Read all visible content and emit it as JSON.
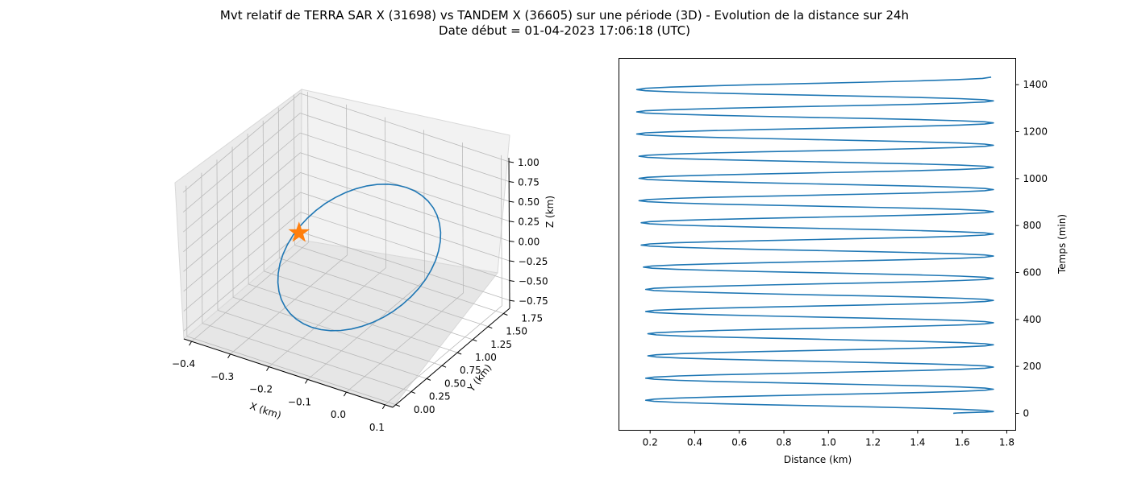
{
  "title_line1": "Mvt relatif de TERRA SAR X (31698) vs TANDEM X (36605) sur une période (3D) - Evolution de la distance sur 24h",
  "title_line2": "Date début = 01-04-2023 17:06:18 (UTC)",
  "colors": {
    "series": "#1f77b4",
    "marker": "#ff7f0e",
    "pane": "#f2f2f2",
    "grid": "#b0b0b0"
  },
  "chart_data": [
    {
      "type": "line3d",
      "xlabel": "X (km)",
      "ylabel": "Y (km)",
      "zlabel": "Z (km)",
      "xticks": [
        "−0.4",
        "−0.3",
        "−0.2",
        "−0.1",
        "0.0",
        "0.1"
      ],
      "yticks": [
        "0.00",
        "0.25",
        "0.50",
        "0.75",
        "1.00",
        "1.25",
        "1.50",
        "1.75"
      ],
      "zticks": [
        "−0.75",
        "−0.50",
        "−0.25",
        "0.00",
        "0.25",
        "0.50",
        "0.75",
        "1.00"
      ],
      "xlim": [
        -0.42,
        0.12
      ],
      "ylim": [
        -0.05,
        1.85
      ],
      "zlim": [
        -0.85,
        1.05
      ],
      "grid": true,
      "marker": {
        "shape": "star",
        "label": "origin"
      },
      "series_color": "#1f77b4"
    },
    {
      "type": "line",
      "xlabel": "Distance (km)",
      "ylabel": "Temps (min)",
      "xticks": [
        "0.2",
        "0.4",
        "0.6",
        "0.8",
        "1.0",
        "1.2",
        "1.4",
        "1.6",
        "1.8"
      ],
      "yticks": [
        "0",
        "200",
        "400",
        "600",
        "800",
        "1000",
        "1200",
        "1400"
      ],
      "xlim": [
        0.06,
        1.84
      ],
      "ylim": [
        -72,
        1512
      ],
      "y_axis_side": "right",
      "grid": false,
      "period_min": 94.5,
      "duration_min": 1440,
      "points": [
        {
          "x": 1.56,
          "y": 0
        },
        {
          "x": 1.74,
          "y": 8
        },
        {
          "x": 0.18,
          "y": 56
        },
        {
          "x": 1.74,
          "y": 103
        },
        {
          "x": 0.18,
          "y": 150
        },
        {
          "x": 1.74,
          "y": 197
        },
        {
          "x": 0.19,
          "y": 245
        },
        {
          "x": 1.74,
          "y": 292
        },
        {
          "x": 0.19,
          "y": 339
        },
        {
          "x": 1.74,
          "y": 386
        },
        {
          "x": 0.18,
          "y": 434
        },
        {
          "x": 1.74,
          "y": 481
        },
        {
          "x": 0.18,
          "y": 528
        },
        {
          "x": 1.74,
          "y": 575
        },
        {
          "x": 0.17,
          "y": 623
        },
        {
          "x": 1.74,
          "y": 670
        },
        {
          "x": 0.16,
          "y": 717
        },
        {
          "x": 1.74,
          "y": 764
        },
        {
          "x": 0.16,
          "y": 812
        },
        {
          "x": 1.74,
          "y": 859
        },
        {
          "x": 0.15,
          "y": 906
        },
        {
          "x": 1.74,
          "y": 953
        },
        {
          "x": 0.15,
          "y": 1001
        },
        {
          "x": 1.74,
          "y": 1048
        },
        {
          "x": 0.15,
          "y": 1095
        },
        {
          "x": 1.74,
          "y": 1142
        },
        {
          "x": 0.14,
          "y": 1190
        },
        {
          "x": 1.74,
          "y": 1237
        },
        {
          "x": 0.14,
          "y": 1284
        },
        {
          "x": 1.74,
          "y": 1331
        },
        {
          "x": 0.14,
          "y": 1379
        },
        {
          "x": 1.73,
          "y": 1432
        }
      ],
      "series_color": "#1f77b4"
    }
  ]
}
